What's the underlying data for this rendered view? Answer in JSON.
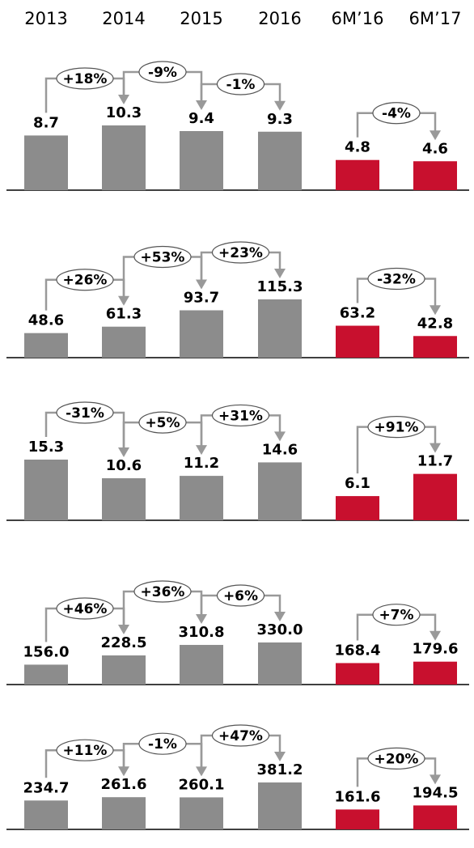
{
  "categories": [
    "2013",
    "2014",
    "2015",
    "2016",
    "6M’16",
    "6M’17"
  ],
  "chart_data": [
    {
      "type": "bar",
      "values": [
        8.7,
        10.3,
        9.4,
        9.3,
        4.8,
        4.6
      ],
      "colors": [
        "#8c8c8c",
        "#8c8c8c",
        "#8c8c8c",
        "#8c8c8c",
        "#c8102e",
        "#c8102e"
      ],
      "changes": [
        "+18%",
        "-9%",
        "-1%",
        null,
        "-4%"
      ]
    },
    {
      "type": "bar",
      "values": [
        48.6,
        61.3,
        93.7,
        115.3,
        63.2,
        42.8
      ],
      "colors": [
        "#8c8c8c",
        "#8c8c8c",
        "#8c8c8c",
        "#8c8c8c",
        "#c8102e",
        "#c8102e"
      ],
      "changes": [
        "+26%",
        "+53%",
        "+23%",
        null,
        "-32%"
      ]
    },
    {
      "type": "bar",
      "values": [
        15.3,
        10.6,
        11.2,
        14.6,
        6.1,
        11.7
      ],
      "colors": [
        "#8c8c8c",
        "#8c8c8c",
        "#8c8c8c",
        "#8c8c8c",
        "#c8102e",
        "#c8102e"
      ],
      "changes": [
        "-31%",
        "+5%",
        "+31%",
        null,
        "+91%"
      ]
    },
    {
      "type": "bar",
      "values": [
        156,
        228.5,
        310.8,
        330,
        168.4,
        179.6
      ],
      "value_labels": [
        "156.0",
        "228.5",
        "310.8",
        "330.0",
        "168.4",
        "179.6"
      ],
      "colors": [
        "#8c8c8c",
        "#8c8c8c",
        "#8c8c8c",
        "#8c8c8c",
        "#c8102e",
        "#c8102e"
      ],
      "changes": [
        "+46%",
        "+36%",
        "+6%",
        null,
        "+7%"
      ]
    },
    {
      "type": "bar",
      "values": [
        234.7,
        261.6,
        260.1,
        381.2,
        161.6,
        194.5
      ],
      "colors": [
        "#8c8c8c",
        "#8c8c8c",
        "#8c8c8c",
        "#8c8c8c",
        "#c8102e",
        "#c8102e"
      ],
      "changes": [
        "+11%",
        "-1%",
        "+47%",
        null,
        "+20%"
      ]
    }
  ]
}
